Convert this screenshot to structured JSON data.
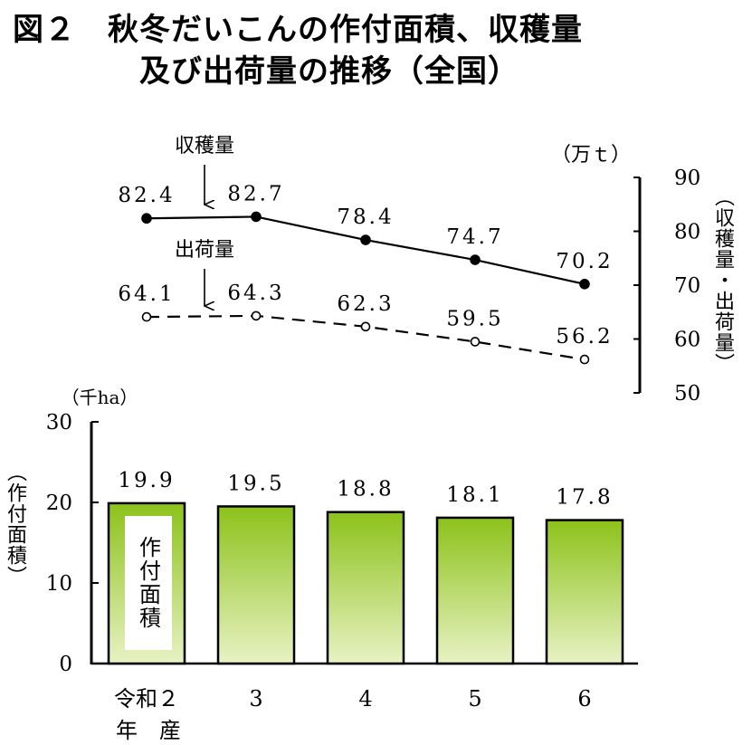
{
  "title": {
    "line1": "図２　秋冬だいこんの作付面積、収穫量",
    "line2": "及び出荷量の推移（全国）"
  },
  "chart_data": [
    {
      "type": "line",
      "unit_label": "（万ｔ）",
      "ylabel": "（収穫量・出荷量）",
      "ylim": [
        50,
        90
      ],
      "yticks": [
        "90",
        "80",
        "70",
        "60",
        "50"
      ],
      "series": [
        {
          "name": "収穫量",
          "values": [
            82.4,
            82.7,
            78.4,
            74.7,
            70.2
          ],
          "labels": [
            "82.4",
            "82.7",
            "78.4",
            "74.7",
            "70.2"
          ],
          "style": "solid-filled-marker"
        },
        {
          "name": "出荷量",
          "values": [
            64.1,
            64.3,
            62.3,
            59.5,
            56.2
          ],
          "labels": [
            "64.1",
            "64.3",
            "62.3",
            "59.5",
            "56.2"
          ],
          "style": "dashed-open-marker"
        }
      ]
    },
    {
      "type": "bar",
      "unit_label": "（千ha）",
      "ylabel": "（作付面積）",
      "ylim": [
        0,
        30
      ],
      "yticks": [
        "30",
        "20",
        "10",
        "0"
      ],
      "categories": [
        "令和２",
        "3",
        "4",
        "5",
        "6"
      ],
      "category_sub": "年　産",
      "series": [
        {
          "name": "作付面積",
          "values": [
            19.9,
            19.5,
            18.8,
            18.1,
            17.8
          ],
          "labels": [
            "19.9",
            "19.5",
            "18.8",
            "18.1",
            "17.8"
          ]
        }
      ],
      "bar_colors": {
        "top": "#8cc21a",
        "bottom": "#e8f2c4",
        "edge": "#000000"
      }
    }
  ]
}
